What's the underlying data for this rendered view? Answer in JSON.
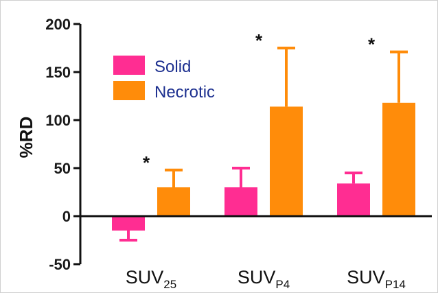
{
  "chart_data": {
    "type": "bar",
    "title": "",
    "ylabel": "%RD",
    "xlabel": "",
    "ylim": [
      -50,
      200
    ],
    "yticks": [
      -50,
      0,
      50,
      100,
      150,
      200
    ],
    "grid": false,
    "legend_position": "top-left",
    "categories": [
      {
        "base": "SUV",
        "sub": "25"
      },
      {
        "base": "SUV",
        "sub": "P4"
      },
      {
        "base": "SUV",
        "sub": "P14"
      }
    ],
    "series": [
      {
        "name": "Solid",
        "color": "#ff2d92",
        "values": [
          -15,
          30,
          34
        ],
        "error_upper": [
          -25,
          50,
          45
        ]
      },
      {
        "name": "Necrotic",
        "color": "#ff8c0a",
        "values": [
          30,
          114,
          118
        ],
        "error_upper": [
          48,
          175,
          171
        ]
      }
    ],
    "annotations": [
      {
        "text": "*",
        "category_index": 0,
        "series_index": 1
      },
      {
        "text": "*",
        "category_index": 1,
        "series_index": 1
      },
      {
        "text": "*",
        "category_index": 2,
        "series_index": 1
      }
    ]
  }
}
